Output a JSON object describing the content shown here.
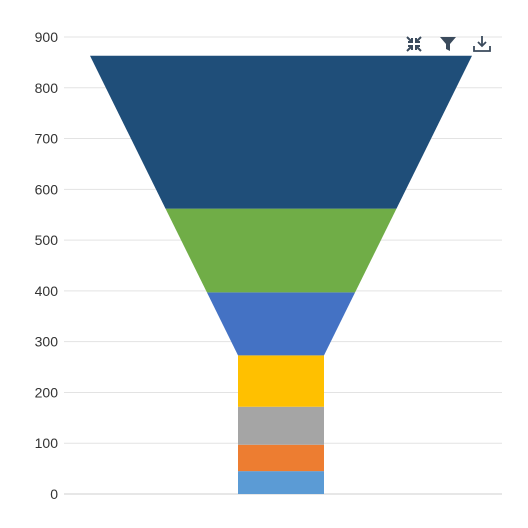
{
  "chart_data": {
    "type": "funnel",
    "y_axis": {
      "min": 0,
      "max": 900,
      "step": 100,
      "ticks": [
        "0",
        "100",
        "200",
        "300",
        "400",
        "500",
        "600",
        "700",
        "800",
        "900"
      ]
    },
    "grid": true,
    "segments": [
      {
        "bottom": 0,
        "top": 45,
        "color": "#5B9BD5"
      },
      {
        "bottom": 45,
        "top": 97,
        "color": "#ED7D31"
      },
      {
        "bottom": 97,
        "top": 172,
        "color": "#A5A5A5"
      },
      {
        "bottom": 172,
        "top": 273,
        "color": "#FFC000"
      },
      {
        "bottom": 273,
        "top": 397,
        "color": "#4472C4"
      },
      {
        "bottom": 397,
        "top": 562,
        "color": "#70AD47"
      },
      {
        "bottom": 562,
        "top": 863,
        "color": "#1F4E79"
      }
    ]
  },
  "toolbar": {
    "icons": [
      "focus-mode-icon",
      "filter-icon",
      "export-icon"
    ],
    "icon_color": "#3a4a5c"
  }
}
